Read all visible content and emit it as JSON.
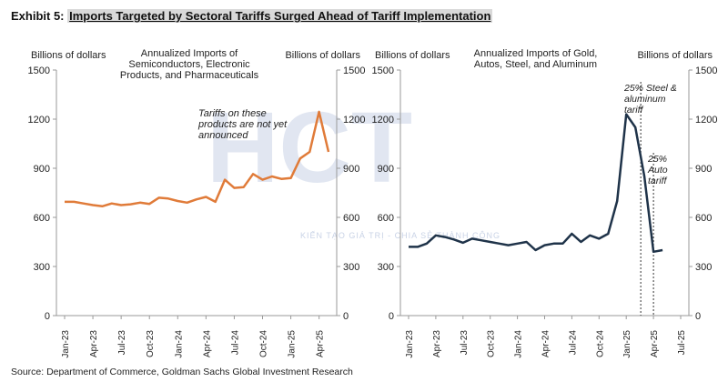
{
  "header": {
    "exhibit": "Exhibit 5:",
    "title": "Imports Targeted by Sectoral Tariffs Surged Ahead of Tariff Implementation"
  },
  "source": "Source: Department of Commerce, Goldman Sachs Global Investment Research",
  "watermark": {
    "logo": "HCT",
    "tagline": "KIẾN TẠO GIÁ TRỊ - CHIA SẺ THÀNH CÔNG"
  },
  "chart_data": [
    {
      "type": "line",
      "title": [
        "Annualized Imports of",
        "Semiconductors, Electronic",
        "Products, and Pharmaceuticals"
      ],
      "ylabel": "Billions of dollars",
      "y2label": "Billions of dollars",
      "annotation": [
        "Tariffs on these",
        "products are not yet",
        "announced"
      ],
      "categories": [
        "Jan-23",
        null,
        null,
        "Apr-23",
        null,
        null,
        "Jul-23",
        null,
        null,
        "Oct-23",
        null,
        null,
        "Jan-24",
        null,
        null,
        "Apr-24",
        null,
        null,
        "Jul-24",
        null,
        null,
        "Oct-24",
        null,
        null,
        "Jan-25",
        null,
        null,
        "Apr-25",
        null
      ],
      "values": [
        695,
        695,
        685,
        675,
        668,
        685,
        675,
        680,
        690,
        682,
        720,
        715,
        700,
        690,
        710,
        725,
        695,
        830,
        780,
        785,
        865,
        830,
        850,
        835,
        840,
        960,
        1000,
        1245,
        1000
      ],
      "color": "#e07b39",
      "ylim": [
        0,
        1500
      ],
      "yticks": [
        0,
        300,
        600,
        900,
        1200,
        1500
      ],
      "y2lim": [
        0,
        1500
      ],
      "y2ticks": [
        0,
        300,
        600,
        900,
        1200,
        1500
      ]
    },
    {
      "type": "line",
      "title": [
        "Annualized Imports of Gold,",
        "Autos, Steel, and Aluminum"
      ],
      "ylabel": "Billions of dollars",
      "y2label": "Billions of dollars",
      "notes": [
        [
          "25% Steel &",
          "aluminum",
          "tariff"
        ],
        [
          "25%",
          "Auto",
          "tariff"
        ]
      ],
      "categories": [
        "Jan-23",
        null,
        null,
        "Apr-23",
        null,
        null,
        "Jul-23",
        null,
        null,
        "Oct-23",
        null,
        null,
        "Jan-24",
        null,
        null,
        "Apr-24",
        null,
        null,
        "Jul-24",
        null,
        null,
        "Oct-24",
        null,
        null,
        "Jan-25",
        null,
        null,
        "Apr-25",
        null,
        null,
        "Jul-25"
      ],
      "values": [
        420,
        420,
        440,
        490,
        480,
        465,
        445,
        470,
        460,
        450,
        440,
        430,
        440,
        450,
        400,
        430,
        440,
        440,
        500,
        450,
        490,
        470,
        500,
        700,
        1230,
        1150,
        850,
        390,
        400,
        null,
        null
      ],
      "color": "#1f3349",
      "ylim": [
        0,
        1500
      ],
      "yticks": [
        0,
        300,
        600,
        900,
        1200,
        1500
      ],
      "y2lim": [
        0,
        1500
      ],
      "y2ticks": [
        0,
        300,
        600,
        900,
        1200,
        1500
      ]
    }
  ]
}
